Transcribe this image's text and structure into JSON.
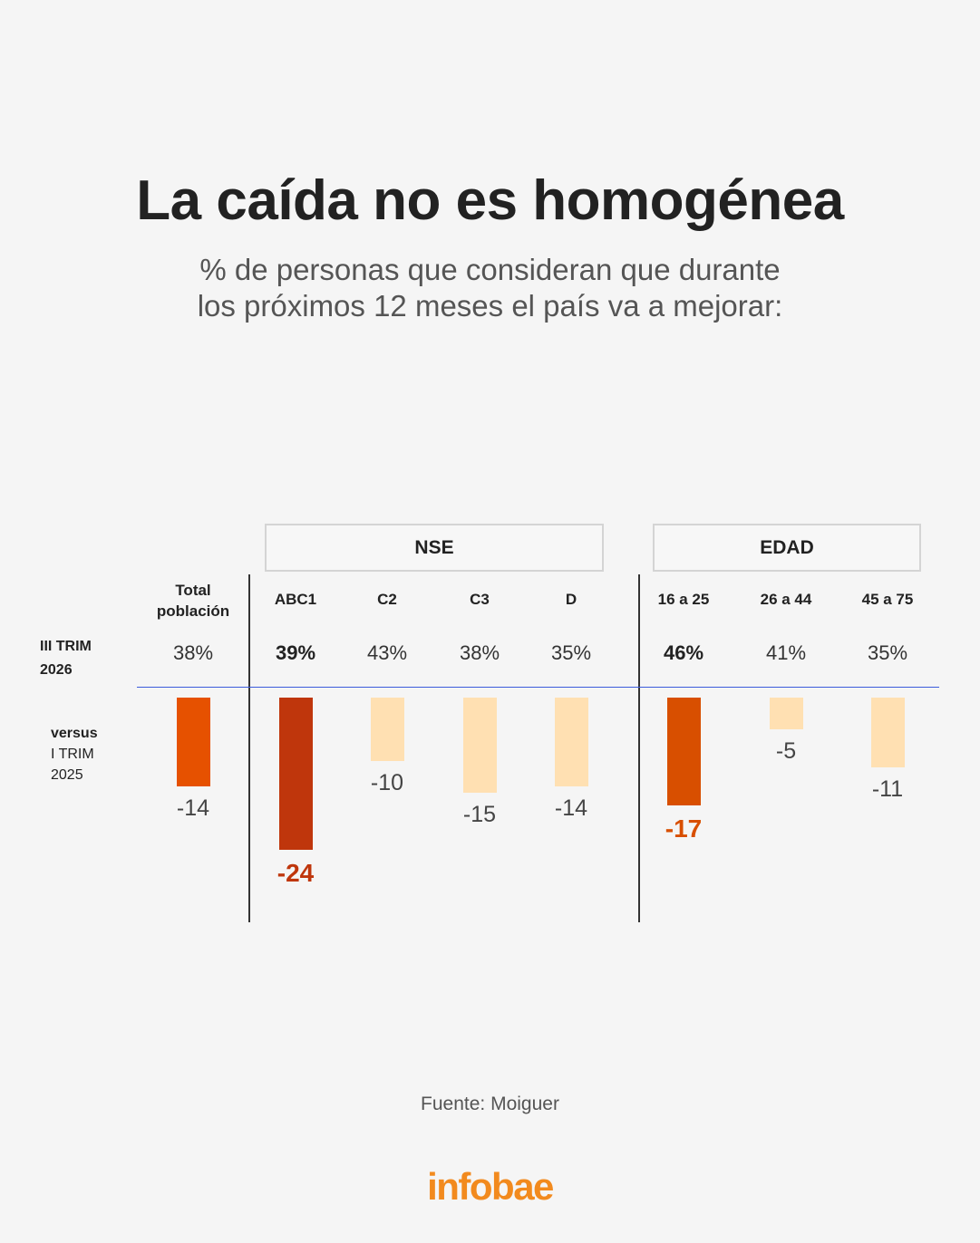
{
  "title": "La caída no es homogénea",
  "subtitle_line1": "% de personas que consideran que durante",
  "subtitle_line2": "los próximos 12 meses el país va a mejorar:",
  "groups": [
    {
      "label": "NSE"
    },
    {
      "label": "EDAD"
    }
  ],
  "row_labels": {
    "current_line1": "III TRIM",
    "current_line2": "2026",
    "versus_line1": "versus",
    "versus_line2": "I TRIM",
    "versus_line3": "2025"
  },
  "source": "Fuente: Moiguer",
  "logo": "infobae",
  "colors": {
    "background": "#f5f5f5",
    "divider_line": "#3b5bdb",
    "logo": "#f28a1e"
  },
  "chart_data": {
    "type": "bar",
    "categories": [
      "Total\npoblación",
      "ABC1",
      "C2",
      "C3",
      "D",
      "16 a 25",
      "26 a 44",
      "45 a 75"
    ],
    "series": [
      {
        "values": [
          38,
          39,
          43,
          38,
          35,
          46,
          41,
          35
        ]
      },
      {
        "values": [
          -14,
          -24,
          -10,
          -15,
          -14,
          -17,
          -5,
          -11
        ]
      }
    ],
    "current_labels": [
      "38%",
      "39%",
      "43%",
      "38%",
      "35%",
      "46%",
      "41%",
      "35%"
    ],
    "change_labels": [
      "-14",
      "-24",
      "-10",
      "-15",
      "-14",
      "-17",
      "-5",
      "-11"
    ],
    "highlighted": [
      false,
      true,
      false,
      false,
      false,
      true,
      false,
      false
    ],
    "bar_colors": [
      "#e65100",
      "#bf360c",
      "#ffe0b2",
      "#ffe0b2",
      "#ffe0b2",
      "#d84f00",
      "#ffe0b2",
      "#ffe0b2"
    ],
    "ylim": [
      -24,
      0
    ],
    "grid": false
  }
}
